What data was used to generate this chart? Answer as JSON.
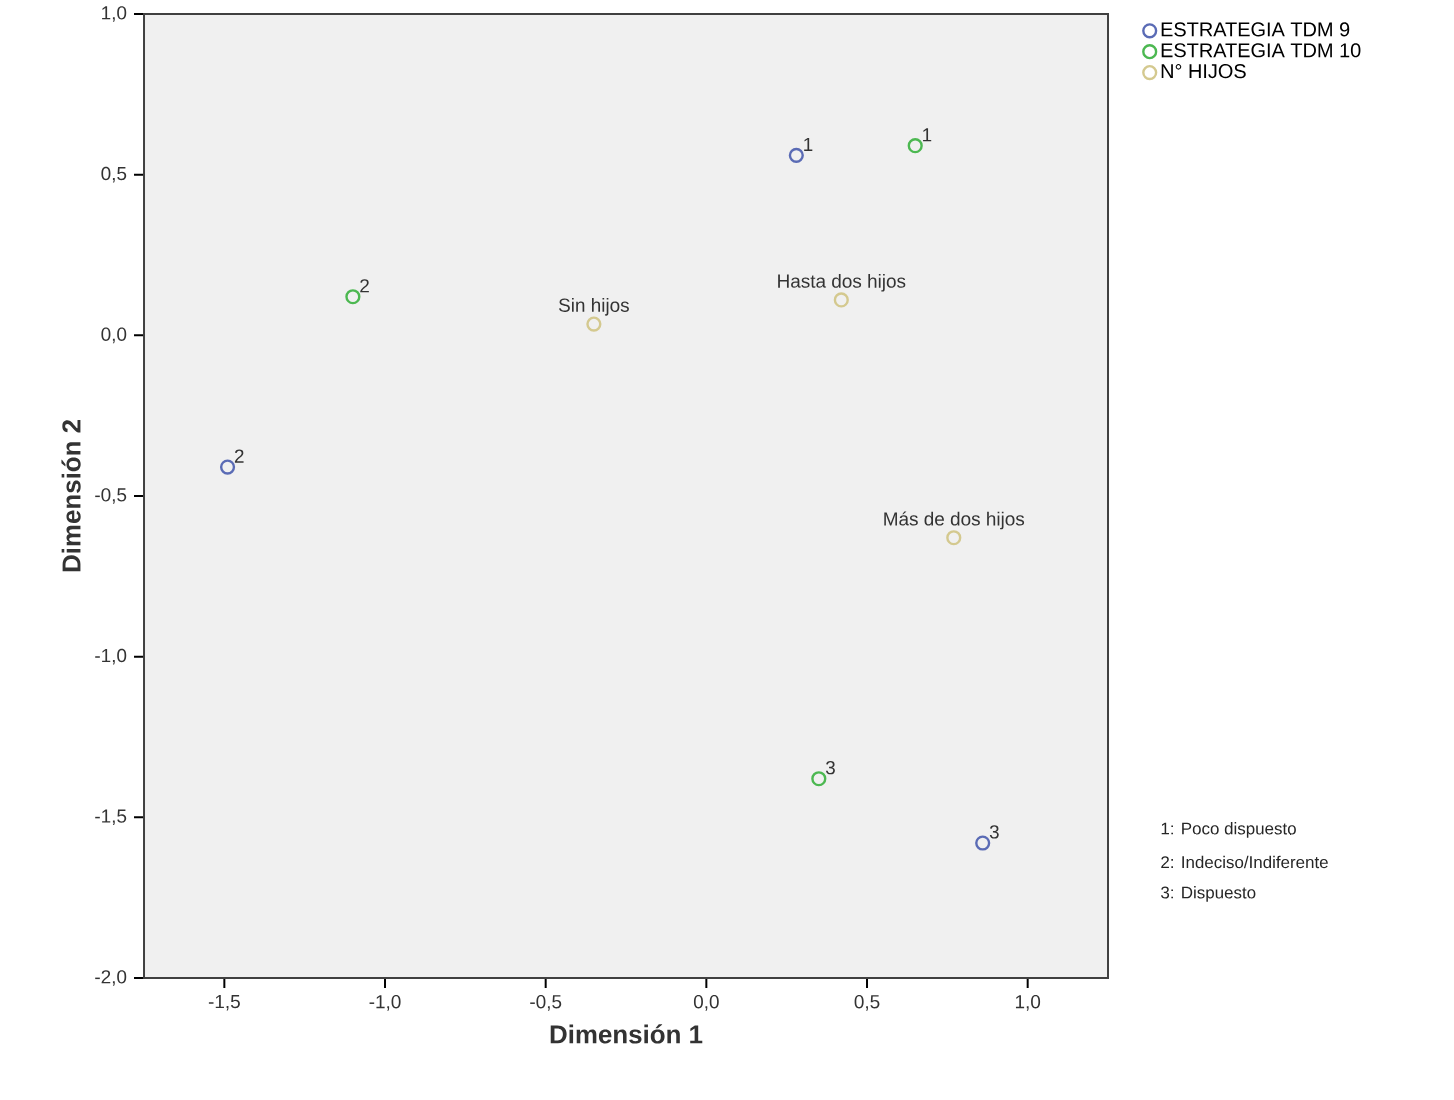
{
  "chart_data": {
    "type": "scatter",
    "xlabel": "Dimensión 1",
    "ylabel": "Dimensión 2",
    "xlim": [
      -1.75,
      1.25
    ],
    "ylim": [
      -2.0,
      1.0
    ],
    "xticks": [
      {
        "value": -1.5,
        "label": "-1,5"
      },
      {
        "value": -1.0,
        "label": "-1,0"
      },
      {
        "value": -0.5,
        "label": "-0,5"
      },
      {
        "value": 0.0,
        "label": "0,0"
      },
      {
        "value": 0.5,
        "label": "0,5"
      },
      {
        "value": 1.0,
        "label": "1,0"
      }
    ],
    "yticks": [
      {
        "value": -2.0,
        "label": "-2,0"
      },
      {
        "value": -1.5,
        "label": "-1,5"
      },
      {
        "value": -1.0,
        "label": "-1,0"
      },
      {
        "value": -0.5,
        "label": "-0,5"
      },
      {
        "value": 0.0,
        "label": "0,0"
      },
      {
        "value": 0.5,
        "label": "0,5"
      },
      {
        "value": 1.0,
        "label": "1,0"
      }
    ],
    "marker": "circle",
    "legend": "top right",
    "series": [
      {
        "name": "ESTRATEGIA TDM 9",
        "color": "#5a6bb5",
        "x": [
          0.28,
          -1.49,
          0.86
        ],
        "values": [
          0.56,
          -0.41,
          -1.58
        ]
      },
      {
        "name": "ESTRATEGIA TDM 10",
        "color": "#4cb851",
        "x": [
          0.65,
          -1.1,
          0.35
        ],
        "values": [
          0.59,
          0.12,
          -1.38
        ]
      },
      {
        "name": "N° HIJOS",
        "color": "#d4c98f",
        "x": [
          -0.35,
          0.42,
          0.77
        ],
        "values": [
          0.035,
          0.11,
          -0.63
        ]
      }
    ],
    "annotations": [
      {
        "text": "1",
        "x": 0.28,
        "y": 0.56
      },
      {
        "text": "2",
        "x": -1.49,
        "y": -0.41
      },
      {
        "text": "3",
        "x": 0.86,
        "y": -1.58
      },
      {
        "text": "1",
        "x": 0.65,
        "y": 0.59
      },
      {
        "text": "2",
        "x": -1.1,
        "y": 0.12
      },
      {
        "text": "3",
        "x": 0.35,
        "y": -1.38
      },
      {
        "text": "Sin hijos",
        "x": -0.35,
        "y": 0.035
      },
      {
        "text": "Hasta dos hijos",
        "x": 0.42,
        "y": 0.11
      },
      {
        "text": "Más de dos hijos",
        "x": 0.77,
        "y": -0.63
      },
      "1: Poco dispuesto",
      "2: Indeciso/Indiferente",
      "3: Dispuesto"
    ]
  }
}
